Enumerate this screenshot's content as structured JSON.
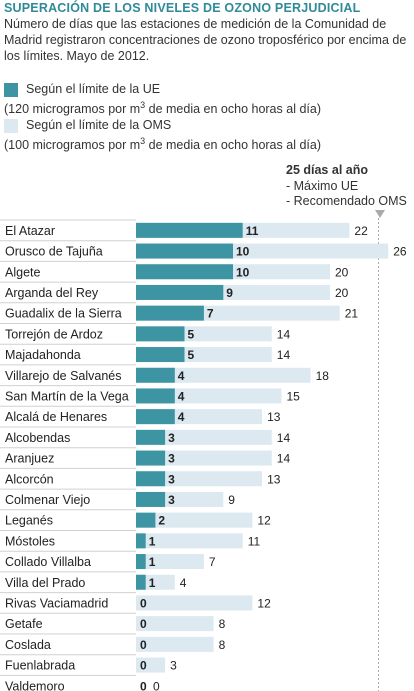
{
  "title": "SUPERACIÓN DE LOS NIVELES DE OZONO PERJUDICIAL",
  "subtitle": "Número de días que las estaciones de medición de la Comunidad de Madrid registraron concentraciones de ozono troposférico por encima de los límites. Mayo de 2012.",
  "legend": {
    "ue": {
      "label": "Según el límite de la UE",
      "detail_pre": "(120 microgramos por m",
      "detail_sup": "3",
      "detail_post": " de media en ocho horas al día)",
      "color": "#3d94a3"
    },
    "oms": {
      "label": "Según el límite de la OMS",
      "detail_pre": "(100 microgramos por m",
      "detail_sup": "3",
      "detail_post": " de media en ocho horas al día)",
      "color": "#dce9f0"
    }
  },
  "reference": {
    "title": "25 días al año",
    "lines": [
      "- Máximo UE",
      "- Recomendado OMS"
    ],
    "value": 25
  },
  "colors": {
    "title": "#2f8a99",
    "ue_bar": "#3d94a3",
    "oms_bar": "#dce9f0",
    "row_line": "#d0d0d0",
    "ref_line": "#aaaaaa"
  },
  "chart_data": {
    "type": "bar",
    "orientation": "horizontal",
    "categories": [
      "El Atazar",
      "Orusco de Tajuña",
      "Algete",
      "Arganda del Rey",
      "Guadalix de la Sierra",
      "Torrejón de Ardoz",
      "Majadahonda",
      "Villarejo de Salvanés",
      "San Martín de la Vega",
      "Alcalá de Henares",
      "Alcobendas",
      "Aranjuez",
      "Alcorcón",
      "Colmenar Viejo",
      "Leganés",
      "Móstoles",
      "Collado Villalba",
      "Villa del Prado",
      "Rivas Vaciamadrid",
      "Getafe",
      "Coslada",
      "Fuenlabrada",
      "Valdemoro"
    ],
    "series": [
      {
        "name": "Según el límite de la UE",
        "values": [
          11,
          10,
          10,
          9,
          7,
          5,
          5,
          4,
          4,
          4,
          3,
          3,
          3,
          3,
          2,
          1,
          1,
          1,
          0,
          0,
          0,
          0,
          0
        ]
      },
      {
        "name": "Según el límite de la OMS",
        "values": [
          22,
          26,
          20,
          20,
          21,
          14,
          14,
          18,
          15,
          13,
          14,
          14,
          13,
          9,
          12,
          11,
          7,
          4,
          12,
          8,
          8,
          3,
          0
        ]
      }
    ],
    "reference_line": 25,
    "xlim": [
      0,
      26
    ],
    "xlabel": "",
    "ylabel": ""
  }
}
